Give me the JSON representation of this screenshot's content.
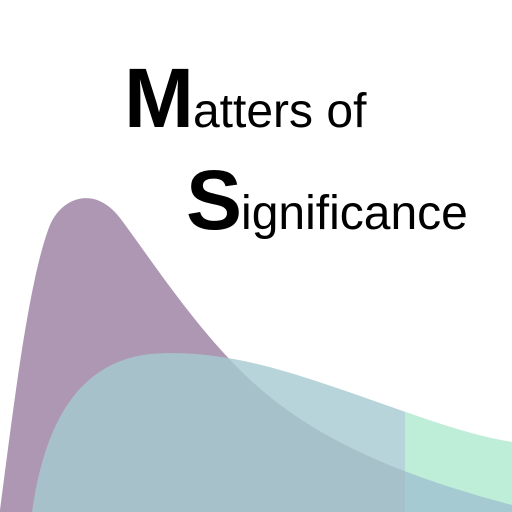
{
  "logo": {
    "line1": {
      "initial": "M",
      "rest": "atters of"
    },
    "line2": {
      "initial": "S",
      "rest": "ignificance"
    }
  },
  "colors": {
    "background": "#ffffff",
    "text": "#000000",
    "purple_curve": "#ad97b3",
    "teal_curve": "#a6cad1",
    "green_band": "#bfeed8"
  }
}
